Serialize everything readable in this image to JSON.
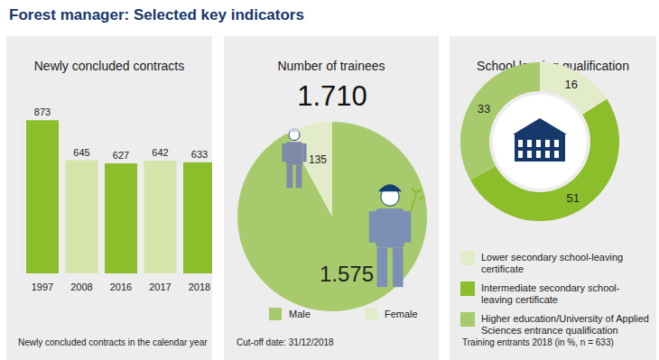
{
  "title": "Forest manager: Selected key indicators",
  "chart_data": [
    {
      "type": "bar",
      "title": "Newly concluded contracts",
      "categories": [
        "1997",
        "2008",
        "2016",
        "2017",
        "2018"
      ],
      "values": [
        873,
        645,
        627,
        642,
        633
      ],
      "colors": [
        "#8cbd2b",
        "#d5e5aa",
        "#8cbd2b",
        "#d5e5aa",
        "#8cbd2b"
      ],
      "ylim": [
        0,
        900
      ],
      "data_labels": true,
      "tick_labels": "x",
      "annotations": [
        "Newly concluded contracts in the calendar year"
      ]
    },
    {
      "type": "pie",
      "title": "Number of trainees",
      "total": {
        "value": 1710,
        "label": "1.710"
      },
      "categories": [
        "Male",
        "Female"
      ],
      "values": [
        1575,
        135
      ],
      "value_labels": [
        "1.575",
        "135"
      ],
      "colors": [
        "#a7cb6c",
        "#e2ecca"
      ],
      "data_labels": true,
      "legend": "bottom",
      "annotations": [
        "Cut-off date: 31/12/2018"
      ]
    },
    {
      "type": "donut",
      "title": "School leaving qualification",
      "categories": [
        "Lower secondary school-leaving certificate",
        "Intermediate secondary school-leaving certificate",
        "Higher education/University of Applied Sciences entrance qualification"
      ],
      "values": [
        16,
        51,
        33
      ],
      "colors": [
        "#e2ecca",
        "#8cbd2b",
        "#a7cb6c"
      ],
      "data_labels": true,
      "legend": "bottom",
      "annotations": [
        "Training entrants 2018 (in %, n = 633)"
      ]
    }
  ]
}
